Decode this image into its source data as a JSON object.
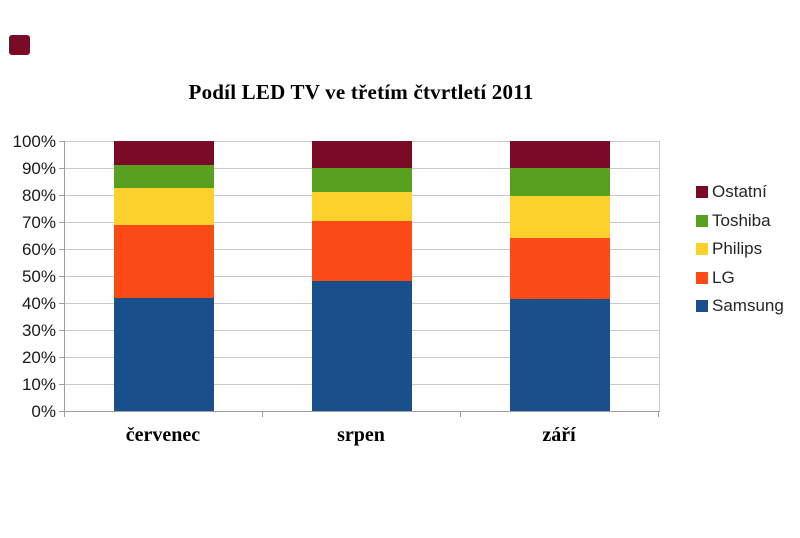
{
  "page": {
    "background": "#ffffff",
    "corner_mark_color": "#7b0a27"
  },
  "chart_data": {
    "type": "bar",
    "subtype": "stacked-100",
    "title": "Podíl LED TV ve třetím čtvrtletí 2011",
    "categories": [
      "červenec",
      "srpen",
      "září"
    ],
    "series": [
      {
        "name": "Samsung",
        "color": "#19508c",
        "values": [
          42,
          48,
          41.5
        ]
      },
      {
        "name": "LG",
        "color": "#fa4a16",
        "values": [
          27,
          22.5,
          22.5
        ]
      },
      {
        "name": "Philips",
        "color": "#fcd12b",
        "values": [
          13.5,
          10.5,
          15.5
        ]
      },
      {
        "name": "Toshiba",
        "color": "#58a01f",
        "values": [
          8.5,
          9,
          10.5
        ]
      },
      {
        "name": "Ostatní",
        "color": "#7b0a27",
        "values": [
          9,
          10,
          10
        ]
      }
    ],
    "series_order_note": "listed bottom to top of stack",
    "unit": "%",
    "ylim": [
      0,
      100
    ],
    "y_ticks": [
      "0%",
      "10%",
      "20%",
      "30%",
      "40%",
      "50%",
      "60%",
      "70%",
      "80%",
      "90%",
      "100%"
    ],
    "grid": true,
    "legend": {
      "position": "right",
      "entries_top_to_bottom": [
        "Ostatní",
        "Toshiba",
        "Philips",
        "LG",
        "Samsung"
      ]
    }
  },
  "style_colors": {
    "gridline": "#c9c9c9",
    "axis": "#9e9e9e",
    "tick_text": "#1a1a1a",
    "legend_text": "#262626"
  }
}
